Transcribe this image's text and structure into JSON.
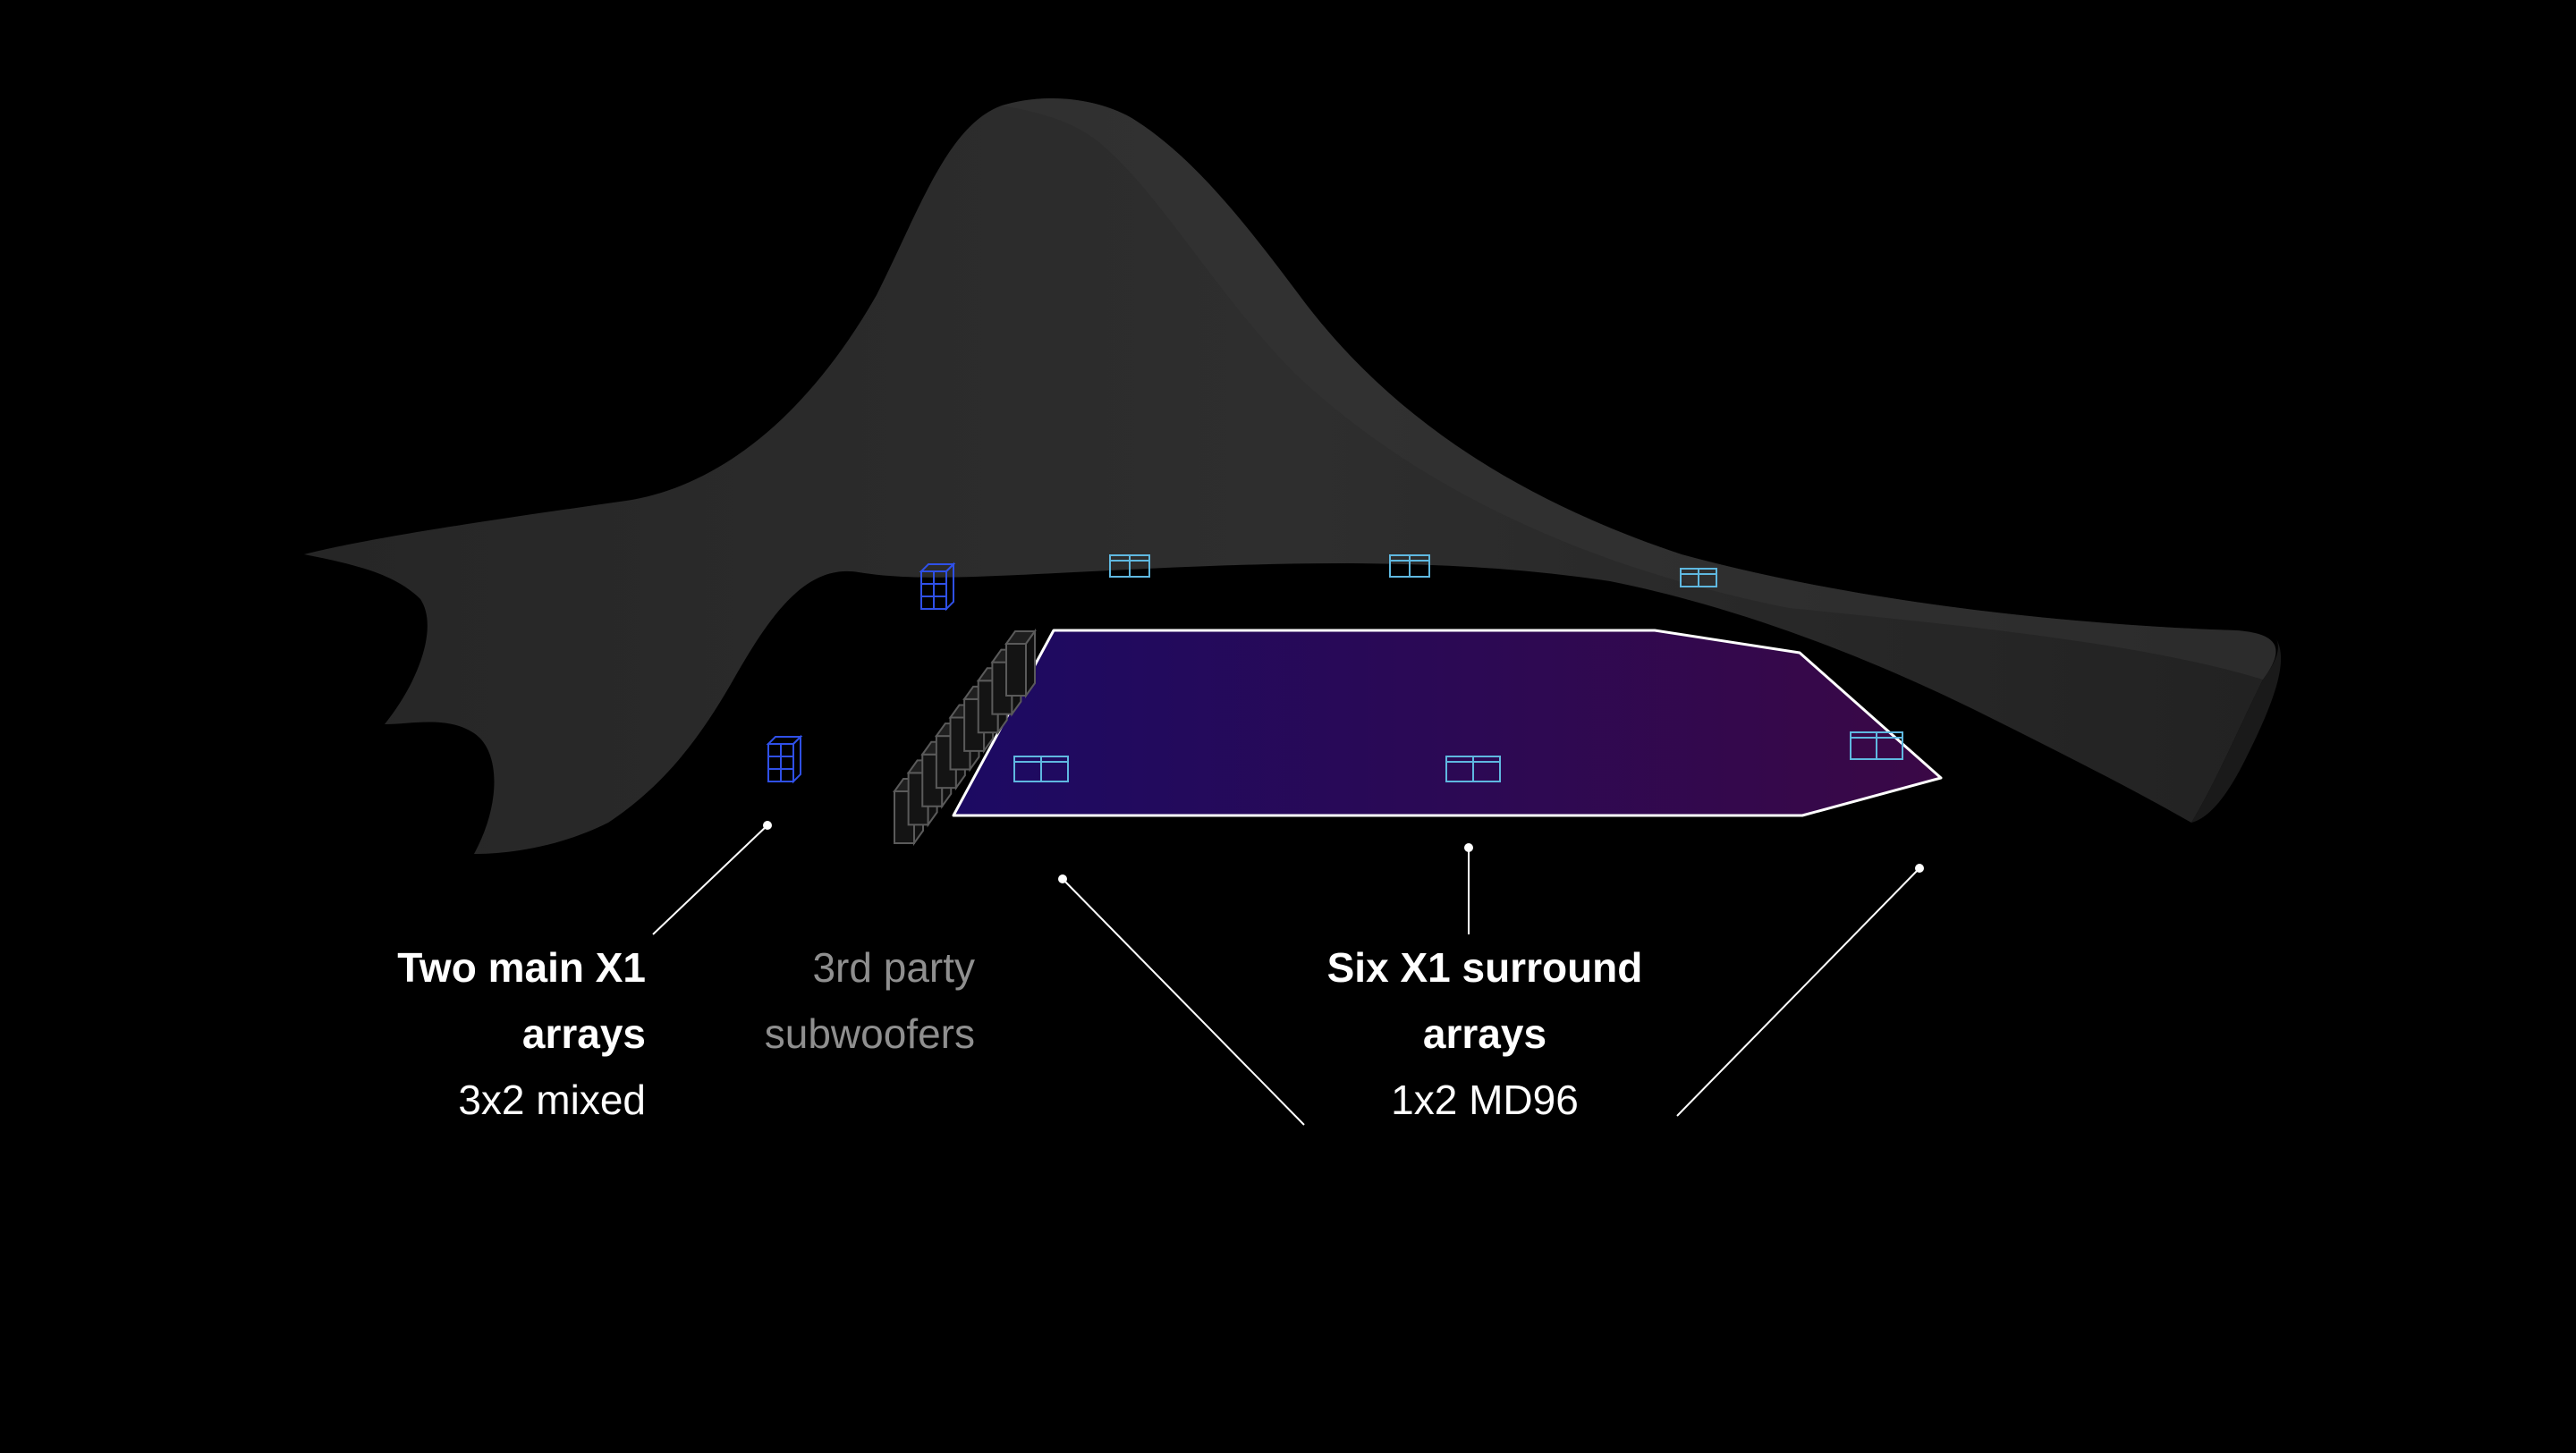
{
  "labels": {
    "main_arrays": {
      "title_line1": "Two main X1",
      "title_line2": "arrays",
      "detail": "3x2 mixed"
    },
    "subwoofers": {
      "line1": "3rd party",
      "line2": "subwoofers"
    },
    "surround_arrays": {
      "title_line1": "Six X1 surround",
      "title_line2": "arrays",
      "detail": "1x2 MD96"
    }
  },
  "colors": {
    "background": "#000000",
    "canopy": "#2a2a2a",
    "canopy_edge": "#1e1e1e",
    "floor_gradient_start": "#1c0a63",
    "floor_gradient_end": "#3a0846",
    "floor_outline": "#ffffff",
    "main_array_wire": "#2f50e8",
    "surround_array_wire": "#5fb8e0",
    "subwoofer_fill": "#141414",
    "subwoofer_edge": "#5a5a5a",
    "callout_line": "#ffffff",
    "main_label_text": "#ffffff",
    "subwoofer_label_text": "#8f8f8f"
  },
  "icons": {
    "main_array": "wireframe-speaker-stack-icon",
    "surround_array": "wireframe-speaker-pair-icon",
    "subwoofer": "subwoofer-block-icon"
  }
}
